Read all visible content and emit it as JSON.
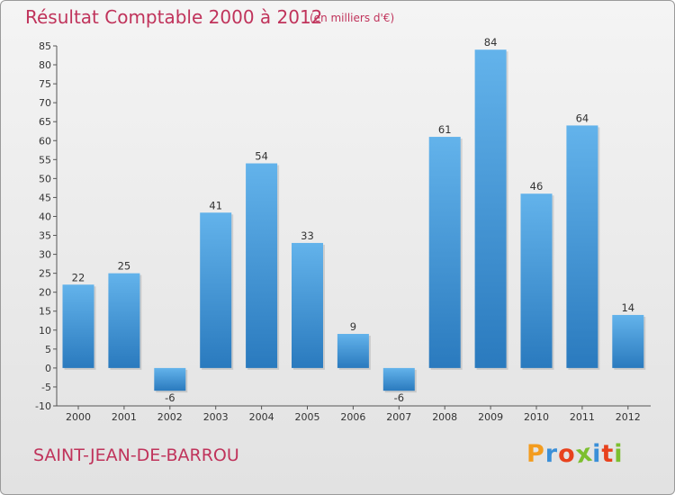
{
  "header": {
    "title": "Résultat Comptable 2000 à 2012",
    "unit": "(en milliers d'€)"
  },
  "footer": {
    "commune": "SAINT-JEAN-DE-BARROU",
    "logo_letters": [
      "P",
      "r",
      "o",
      "x",
      "i",
      "t",
      "i"
    ],
    "logo_colors": [
      "#f39c1f",
      "#3a8fd8",
      "#e8421d",
      "#7cbf2f",
      "#3a8fd8",
      "#e8421d",
      "#7cbf2f"
    ]
  },
  "colors": {
    "accent": "#c0335b",
    "bar_top": "#62b2ea",
    "bar_bottom": "#2b7bbf"
  },
  "chart_data": {
    "type": "bar",
    "title": "Résultat Comptable 2000 à 2012",
    "subtitle": "(en milliers d'€)",
    "xlabel": "",
    "ylabel": "",
    "categories": [
      "2000",
      "2001",
      "2002",
      "2003",
      "2004",
      "2005",
      "2006",
      "2007",
      "2008",
      "2009",
      "2010",
      "2011",
      "2012"
    ],
    "values": [
      22,
      25,
      -6,
      41,
      54,
      33,
      9,
      -6,
      61,
      84,
      46,
      64,
      14
    ],
    "ylim": [
      -10,
      85
    ],
    "yticks": [
      -10,
      -5,
      0,
      5,
      10,
      15,
      20,
      25,
      30,
      35,
      40,
      45,
      50,
      55,
      60,
      65,
      70,
      75,
      80,
      85
    ],
    "grid": false
  }
}
